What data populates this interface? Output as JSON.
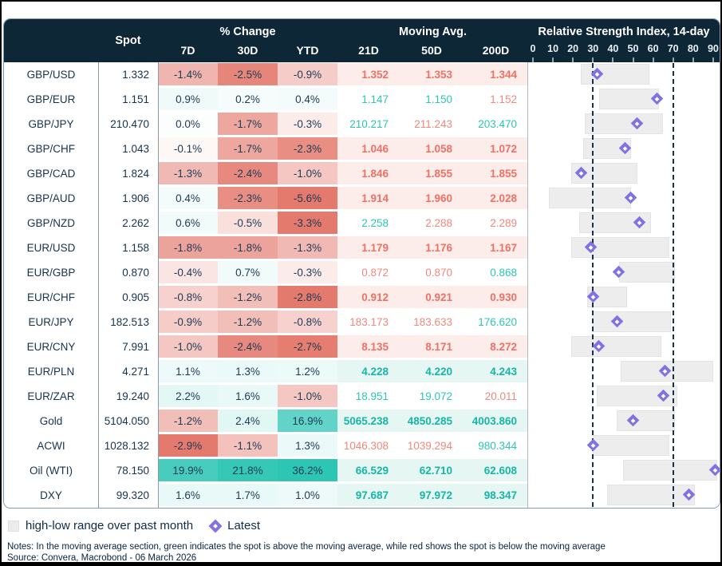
{
  "header": {
    "spot_label": "Spot",
    "pct_change_label": "% Change",
    "pct_cols": [
      "7D",
      "30D",
      "YTD"
    ],
    "ma_label": "Moving Avg.",
    "ma_cols": [
      "21D",
      "50D",
      "200D"
    ],
    "rsi_label": "Relative Strength Index, 14-day",
    "rsi_axis_ticks": [
      0,
      10,
      20,
      30,
      40,
      50,
      60,
      70,
      80,
      90
    ]
  },
  "legend": {
    "range_label": "high-low range over past month",
    "latest_label": "Latest"
  },
  "notes": "Notes: In the moving average section, green indicates the spot is above the moving average, while red shows the spot is below the moving average",
  "source": "Source: Convera, Macrobond - 06 March 2026",
  "colors": {
    "navy": "#0e2737",
    "row_text": "#16334e",
    "pct_neg_base": "#e4796d",
    "pct_pos_base": "#2dc5b4",
    "ma_red": "#f0887c",
    "ma_teal": "#2cc6b6",
    "ma_red_bold": "#ed7165",
    "ma_teal_bold": "#17b6a4",
    "ma_bg_below": "#fcedeb",
    "ma_bg_above": "#e6f6f3",
    "bar": "#ededed",
    "bar_border": "#e3e3e3",
    "diamond": "#8172e2",
    "dash": "#14324d",
    "grid_grey": "#8b99a4",
    "rsi_axis_grey": "#aeb9c2"
  },
  "rows": [
    {
      "name": "GBP/USD",
      "spot": "1.332",
      "pct": [
        -1.4,
        -2.5,
        -0.9
      ],
      "ma": [
        "1.352",
        "1.353",
        "1.344"
      ],
      "ma_dirs": [
        "below",
        "below",
        "below"
      ],
      "rsi": {
        "low": 24,
        "high": 58,
        "latest": 32
      }
    },
    {
      "name": "GBP/EUR",
      "spot": "1.151",
      "pct": [
        0.9,
        0.2,
        0.4
      ],
      "ma": [
        "1.147",
        "1.150",
        "1.152"
      ],
      "ma_dirs": [
        "above",
        "above",
        "below"
      ],
      "rsi": {
        "low": 33,
        "high": 63,
        "latest": 62
      }
    },
    {
      "name": "GBP/JPY",
      "spot": "210.470",
      "pct": [
        0.0,
        -1.7,
        -0.3
      ],
      "ma": [
        "210.217",
        "211.243",
        "203.470"
      ],
      "ma_dirs": [
        "above",
        "below",
        "above"
      ],
      "rsi": {
        "low": 26,
        "high": 65,
        "latest": 52
      }
    },
    {
      "name": "GBP/CHF",
      "spot": "1.043",
      "pct": [
        -0.1,
        -1.7,
        -2.3
      ],
      "ma": [
        "1.046",
        "1.058",
        "1.072"
      ],
      "ma_dirs": [
        "below",
        "below",
        "below"
      ],
      "rsi": {
        "low": 25,
        "high": 49,
        "latest": 46
      }
    },
    {
      "name": "GBP/CAD",
      "spot": "1.824",
      "pct": [
        -1.3,
        -2.4,
        -1.0
      ],
      "ma": [
        "1.846",
        "1.855",
        "1.855"
      ],
      "ma_dirs": [
        "below",
        "below",
        "below"
      ],
      "rsi": {
        "low": 19,
        "high": 52,
        "latest": 24
      }
    },
    {
      "name": "GBP/AUD",
      "spot": "1.906",
      "pct": [
        0.4,
        -2.3,
        -5.6
      ],
      "ma": [
        "1.914",
        "1.960",
        "2.028"
      ],
      "ma_dirs": [
        "below",
        "below",
        "below"
      ],
      "rsi": {
        "low": 8,
        "high": 49,
        "latest": 49
      }
    },
    {
      "name": "GBP/NZD",
      "spot": "2.262",
      "pct": [
        0.6,
        -0.5,
        -3.3
      ],
      "ma": [
        "2.258",
        "2.288",
        "2.289"
      ],
      "ma_dirs": [
        "above",
        "below",
        "below"
      ],
      "rsi": {
        "low": 23,
        "high": 59,
        "latest": 53
      }
    },
    {
      "name": "EUR/USD",
      "spot": "1.158",
      "pct": [
        -1.8,
        -1.8,
        -1.3
      ],
      "ma": [
        "1.179",
        "1.176",
        "1.167"
      ],
      "ma_dirs": [
        "below",
        "below",
        "below"
      ],
      "rsi": {
        "low": 19,
        "high": 68,
        "latest": 29
      }
    },
    {
      "name": "EUR/GBP",
      "spot": "0.870",
      "pct": [
        -0.4,
        0.7,
        -0.3
      ],
      "ma": [
        "0.872",
        "0.870",
        "0.868"
      ],
      "ma_dirs": [
        "below",
        "below",
        "above"
      ],
      "rsi": {
        "low": 43,
        "high": 71,
        "latest": 43
      }
    },
    {
      "name": "EUR/CHF",
      "spot": "0.905",
      "pct": [
        -0.8,
        -1.2,
        -2.8
      ],
      "ma": [
        "0.912",
        "0.921",
        "0.930"
      ],
      "ma_dirs": [
        "below",
        "below",
        "below"
      ],
      "rsi": {
        "low": 27,
        "high": 47,
        "latest": 30
      }
    },
    {
      "name": "EUR/JPY",
      "spot": "182.513",
      "pct": [
        -0.9,
        -1.2,
        -0.8
      ],
      "ma": [
        "183.173",
        "183.633",
        "176.620"
      ],
      "ma_dirs": [
        "below",
        "below",
        "above"
      ],
      "rsi": {
        "low": 30,
        "high": 69,
        "latest": 42
      }
    },
    {
      "name": "EUR/CNY",
      "spot": "7.991",
      "pct": [
        -1.0,
        -2.4,
        -2.7
      ],
      "ma": [
        "8.135",
        "8.171",
        "8.272"
      ],
      "ma_dirs": [
        "below",
        "below",
        "below"
      ],
      "rsi": {
        "low": 19,
        "high": 64,
        "latest": 33
      }
    },
    {
      "name": "EUR/PLN",
      "spot": "4.271",
      "pct": [
        1.1,
        1.3,
        1.2
      ],
      "ma": [
        "4.228",
        "4.220",
        "4.243"
      ],
      "ma_dirs": [
        "above",
        "above",
        "above"
      ],
      "rsi": {
        "low": 44,
        "high": 90,
        "latest": 66
      }
    },
    {
      "name": "EUR/ZAR",
      "spot": "19.240",
      "pct": [
        2.2,
        1.6,
        -1.0
      ],
      "ma": [
        "18.951",
        "19.072",
        "20.011"
      ],
      "ma_dirs": [
        "above",
        "above",
        "below"
      ],
      "rsi": {
        "low": 32,
        "high": 72,
        "latest": 65
      }
    },
    {
      "name": "Gold",
      "spot": "5104.050",
      "pct": [
        -1.2,
        2.4,
        16.9
      ],
      "ma": [
        "5065.238",
        "4850.285",
        "4003.860"
      ],
      "ma_dirs": [
        "above",
        "above",
        "above"
      ],
      "rsi": {
        "low": 42,
        "high": 71,
        "latest": 50
      }
    },
    {
      "name": "ACWI",
      "spot": "1028.132",
      "pct": [
        -2.9,
        -1.1,
        1.3
      ],
      "ma": [
        "1046.308",
        "1039.294",
        "980.344"
      ],
      "ma_dirs": [
        "below",
        "below",
        "above"
      ],
      "rsi": {
        "low": 30,
        "high": 68,
        "latest": 30
      }
    },
    {
      "name": "Oil (WTI)",
      "spot": "78.150",
      "pct": [
        19.9,
        21.8,
        36.2
      ],
      "ma": [
        "66.529",
        "62.710",
        "62.608"
      ],
      "ma_dirs": [
        "above",
        "above",
        "above"
      ],
      "rsi": {
        "low": 45,
        "high": 92,
        "latest": 91
      }
    },
    {
      "name": "DXY",
      "spot": "99.320",
      "pct": [
        1.6,
        1.7,
        1.0
      ],
      "ma": [
        "97.687",
        "97.972",
        "98.347"
      ],
      "ma_dirs": [
        "above",
        "above",
        "above"
      ],
      "rsi": {
        "low": 37,
        "high": 81,
        "latest": 78
      }
    }
  ],
  "chart_data": {
    "type": "table",
    "title": "Relative Strength Index, 14-day",
    "xlabel": "RSI",
    "xlim": [
      0,
      90
    ],
    "x_ticks": [
      0,
      10,
      20,
      30,
      40,
      50,
      60,
      70,
      80,
      90
    ],
    "reference_lines": [
      30,
      70
    ],
    "legend_position": "bottom",
    "categories": [
      "GBP/USD",
      "GBP/EUR",
      "GBP/JPY",
      "GBP/CHF",
      "GBP/CAD",
      "GBP/AUD",
      "GBP/NZD",
      "EUR/USD",
      "EUR/GBP",
      "EUR/CHF",
      "EUR/JPY",
      "EUR/CNY",
      "EUR/PLN",
      "EUR/ZAR",
      "Gold",
      "ACWI",
      "Oil (WTI)",
      "DXY"
    ],
    "series": [
      {
        "name": "high-low range low",
        "values": [
          24,
          33,
          26,
          25,
          19,
          8,
          23,
          19,
          43,
          27,
          30,
          19,
          44,
          32,
          42,
          30,
          45,
          37
        ]
      },
      {
        "name": "high-low range high",
        "values": [
          58,
          63,
          65,
          49,
          52,
          49,
          59,
          68,
          71,
          47,
          69,
          64,
          90,
          72,
          71,
          68,
          92,
          81
        ]
      },
      {
        "name": "Latest",
        "values": [
          32,
          62,
          52,
          46,
          24,
          49,
          53,
          29,
          43,
          30,
          42,
          33,
          66,
          65,
          50,
          30,
          91,
          78
        ]
      }
    ]
  }
}
